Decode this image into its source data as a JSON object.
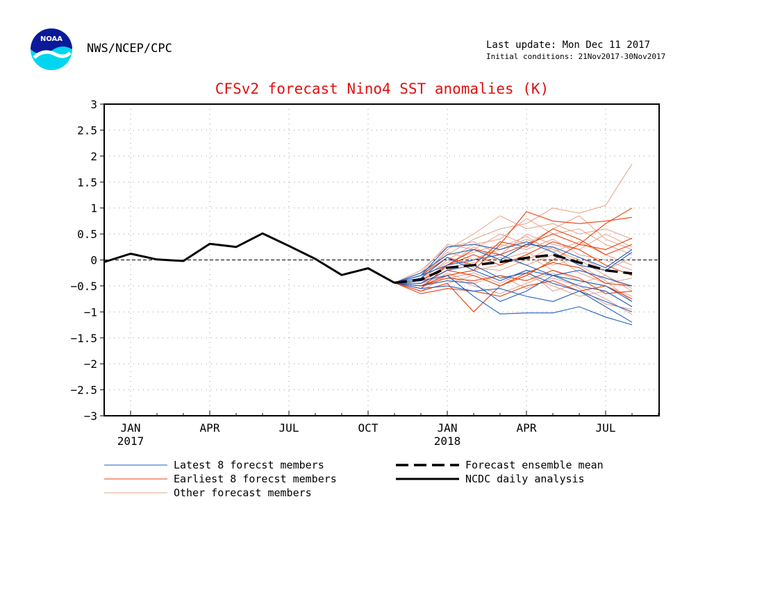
{
  "header": {
    "org": "NWS/NCEP/CPC",
    "last_update": "Last update: Mon Dec 11 2017",
    "initial_conditions": "Initial conditions: 21Nov2017-30Nov2017",
    "logo_text": "NOAA",
    "logo_icon": "noaa-logo-icon"
  },
  "chart_data": {
    "type": "line",
    "title": "CFSv2 forecast Nino4 SST anomalies (K)",
    "xlabel": "",
    "ylabel": "",
    "x_axis": "months Dec 2016 - Aug 2018",
    "xlim": [
      "2016-12",
      "2018-09"
    ],
    "ylim": [
      -3,
      3
    ],
    "y_ticks": [
      "3",
      "2.5",
      "2",
      "1.5",
      "1",
      "0.5",
      "0",
      "−0.5",
      "−1",
      "−1.5",
      "−2",
      "−2.5",
      "−3"
    ],
    "x_ticks": [
      {
        "month": "2017-01",
        "label": "JAN",
        "year": "2017"
      },
      {
        "month": "2017-04",
        "label": "APR",
        "year": ""
      },
      {
        "month": "2017-07",
        "label": "JUL",
        "year": ""
      },
      {
        "month": "2017-10",
        "label": "OCT",
        "year": ""
      },
      {
        "month": "2018-01",
        "label": "JAN",
        "year": "2018"
      },
      {
        "month": "2018-04",
        "label": "APR",
        "year": ""
      },
      {
        "month": "2018-07",
        "label": "JUL",
        "year": ""
      }
    ],
    "grid": true,
    "colors": {
      "latest": "#1f5fbf",
      "earliest": "#e8400c",
      "other": "#e8a08a",
      "mean": "#000000",
      "analysis": "#000000"
    },
    "legend": [
      {
        "label": "Latest 8 forecst members",
        "style": "latest"
      },
      {
        "label": "Earliest 8 forecst members",
        "style": "earliest"
      },
      {
        "label": "Other forecast members",
        "style": "other"
      },
      {
        "label": "Forecast ensemble mean",
        "style": "mean"
      },
      {
        "label": "NCDC daily analysis",
        "style": "analysis"
      }
    ],
    "analysis": {
      "x": [
        "2016-12",
        "2017-01",
        "2017-02",
        "2017-03",
        "2017-04",
        "2017-05",
        "2017-06",
        "2017-07",
        "2017-08",
        "2017-09",
        "2017-10",
        "2017-11"
      ],
      "values": [
        -0.04,
        0.12,
        0.01,
        -0.02,
        0.31,
        0.25,
        0.51,
        0.27,
        0.02,
        -0.29,
        -0.16,
        -0.44
      ]
    },
    "forecast_x": [
      "2017-11",
      "2017-12",
      "2018-01",
      "2018-02",
      "2018-03",
      "2018-04",
      "2018-05",
      "2018-06",
      "2018-07",
      "2018-08"
    ],
    "ensemble_mean": [
      -0.44,
      -0.38,
      -0.15,
      -0.1,
      -0.04,
      0.04,
      0.1,
      -0.05,
      -0.2,
      -0.26
    ],
    "latest_members": [
      [
        -0.44,
        -0.3,
        0.25,
        0.3,
        0.2,
        0.35,
        0.15,
        -0.1,
        -0.2,
        0.15
      ],
      [
        -0.44,
        -0.35,
        0.05,
        -0.2,
        -0.4,
        -0.2,
        -0.3,
        -0.5,
        -0.6,
        -0.9
      ],
      [
        -0.44,
        -0.5,
        -0.4,
        -0.45,
        -0.8,
        -0.6,
        -0.3,
        -0.4,
        -0.5,
        -0.8
      ],
      [
        -0.44,
        -0.4,
        -0.3,
        -0.7,
        -1.04,
        -1.02,
        -1.02,
        -0.9,
        -1.1,
        -1.25
      ],
      [
        -0.44,
        -0.25,
        0.1,
        0.2,
        0.0,
        0.3,
        0.25,
        0.05,
        -0.15,
        0.2
      ],
      [
        -0.44,
        -0.45,
        -0.2,
        -0.1,
        -0.35,
        -0.25,
        -0.45,
        -0.6,
        -0.8,
        -1.0
      ],
      [
        -0.44,
        -0.3,
        -0.1,
        0.0,
        0.1,
        -0.1,
        -0.3,
        -0.2,
        -0.35,
        -0.5
      ],
      [
        -0.44,
        -0.55,
        -0.5,
        -0.6,
        -0.55,
        -0.7,
        -0.8,
        -0.6,
        -0.9,
        -1.2
      ]
    ],
    "earliest_members": [
      [
        -0.44,
        -0.6,
        -0.45,
        -1.0,
        -0.5,
        -0.3,
        0.0,
        0.3,
        0.7,
        1.0
      ],
      [
        -0.44,
        -0.5,
        -0.3,
        -0.2,
        0.3,
        0.93,
        0.75,
        0.7,
        0.75,
        0.82
      ],
      [
        -0.44,
        -0.55,
        -0.1,
        0.2,
        0.1,
        0.3,
        0.5,
        0.3,
        0.2,
        0.42
      ],
      [
        -0.44,
        -0.65,
        -0.55,
        -0.6,
        -0.7,
        -0.5,
        -0.4,
        -0.6,
        -0.5,
        -0.75
      ],
      [
        -0.44,
        -0.3,
        0.05,
        -0.1,
        0.35,
        0.25,
        0.6,
        0.4,
        0.1,
        0.3
      ],
      [
        -0.44,
        -0.45,
        -0.2,
        -0.3,
        -0.5,
        -0.25,
        -0.05,
        -0.15,
        -0.45,
        -0.5
      ],
      [
        -0.44,
        -0.4,
        -0.1,
        0.1,
        -0.1,
        0.1,
        0.35,
        0.2,
        -0.1,
        -0.3
      ],
      [
        -0.44,
        -0.5,
        -0.35,
        -0.4,
        -0.3,
        -0.4,
        -0.2,
        -0.35,
        -0.65,
        -0.6
      ]
    ],
    "other_members": [
      [
        -0.44,
        -0.3,
        0.1,
        0.4,
        0.6,
        0.7,
        1.0,
        0.9,
        1.05,
        1.85
      ],
      [
        -0.44,
        -0.35,
        0.2,
        0.5,
        0.85,
        0.6,
        0.7,
        0.5,
        0.6,
        0.4
      ],
      [
        -0.44,
        -0.4,
        0.0,
        0.3,
        0.4,
        0.8,
        0.5,
        0.6,
        0.3,
        0.1
      ],
      [
        -0.44,
        -0.25,
        0.3,
        0.2,
        0.5,
        0.3,
        0.6,
        0.85,
        0.4,
        0.2
      ],
      [
        -0.44,
        -0.5,
        -0.2,
        0.0,
        0.2,
        0.4,
        0.2,
        0.0,
        -0.3,
        -0.6
      ],
      [
        -0.44,
        -0.45,
        -0.3,
        -0.2,
        -0.1,
        0.1,
        -0.2,
        -0.4,
        -0.5,
        -0.7
      ],
      [
        -0.44,
        -0.6,
        -0.45,
        -0.3,
        -0.5,
        -0.3,
        -0.5,
        -0.7,
        -0.6,
        -0.9
      ],
      [
        -0.44,
        -0.35,
        -0.05,
        0.15,
        0.3,
        0.2,
        0.4,
        0.1,
        0.0,
        -0.2
      ],
      [
        -0.44,
        -0.2,
        0.25,
        0.35,
        0.1,
        0.5,
        0.3,
        0.2,
        0.5,
        0.25
      ],
      [
        -0.44,
        -0.55,
        -0.25,
        -0.45,
        -0.3,
        -0.55,
        -0.35,
        -0.5,
        -0.75,
        -1.05
      ],
      [
        -0.44,
        -0.4,
        -0.15,
        -0.05,
        0.05,
        -0.1,
        0.1,
        -0.25,
        -0.45,
        -0.35
      ],
      [
        -0.44,
        -0.3,
        0.15,
        0.0,
        0.25,
        0.45,
        0.15,
        0.35,
        0.1,
        -0.1
      ],
      [
        -0.44,
        -0.5,
        -0.35,
        -0.25,
        -0.45,
        -0.2,
        -0.6,
        -0.45,
        -0.3,
        -0.55
      ],
      [
        -0.44,
        -0.45,
        -0.1,
        0.25,
        0.0,
        0.15,
        -0.1,
        0.05,
        -0.2,
        0.05
      ],
      [
        -0.44,
        -0.35,
        0.05,
        -0.15,
        -0.2,
        0.0,
        0.25,
        -0.1,
        -0.4,
        -0.8
      ],
      [
        -0.44,
        -0.6,
        -0.3,
        -0.5,
        -0.65,
        -0.45,
        -0.25,
        -0.55,
        -0.85,
        -0.95
      ]
    ]
  }
}
